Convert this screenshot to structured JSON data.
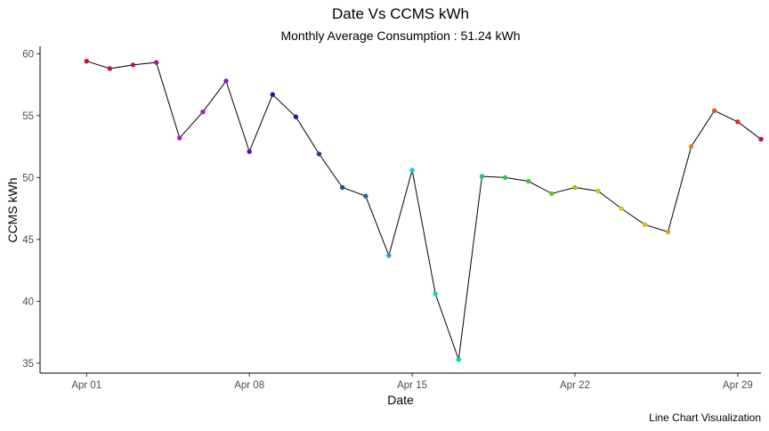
{
  "chart_data": {
    "type": "line",
    "title": "Date Vs CCMS kWh",
    "subtitle": "Monthly Average Consumption : 51.24 kWh",
    "xlabel": "Date",
    "ylabel": "CCMS kWh",
    "caption": "Line Chart Visualization",
    "xlim": [
      "2023-03-30",
      "2023-04-30"
    ],
    "ylim": [
      34.2,
      60.6
    ],
    "x_ticks": [
      "2023-04-01",
      "2023-04-08",
      "2023-04-15",
      "2023-04-22",
      "2023-04-29"
    ],
    "x_tick_labels": [
      "Apr 01",
      "Apr 08",
      "Apr 15",
      "Apr 22",
      "Apr 29"
    ],
    "y_ticks": [
      35,
      40,
      45,
      50,
      55,
      60
    ],
    "y_tick_labels": [
      "35",
      "40",
      "45",
      "50",
      "55",
      "60"
    ],
    "grid": false,
    "legend": "none",
    "line_color": "#000000",
    "x": [
      "2023-04-01",
      "2023-04-02",
      "2023-04-03",
      "2023-04-04",
      "2023-04-05",
      "2023-04-06",
      "2023-04-07",
      "2023-04-08",
      "2023-04-09",
      "2023-04-10",
      "2023-04-11",
      "2023-04-12",
      "2023-04-13",
      "2023-04-14",
      "2023-04-15",
      "2023-04-16",
      "2023-04-17",
      "2023-04-18",
      "2023-04-19",
      "2023-04-20",
      "2023-04-21",
      "2023-04-22",
      "2023-04-23",
      "2023-04-24",
      "2023-04-25",
      "2023-04-26",
      "2023-04-27",
      "2023-04-28",
      "2023-04-29",
      "2023-04-30"
    ],
    "y": [
      59.4,
      58.8,
      59.1,
      59.3,
      53.2,
      55.3,
      57.8,
      52.1,
      56.7,
      54.9,
      51.9,
      49.2,
      48.5,
      43.7,
      50.6,
      40.6,
      35.3,
      50.1,
      50.0,
      49.7,
      48.7,
      49.2,
      48.9,
      47.5,
      46.2,
      45.6,
      52.5,
      55.4,
      54.5,
      53.1
    ],
    "point_colors": [
      "#C8102E",
      "#C01050",
      "#B81070",
      "#B0108E",
      "#A818B8",
      "#A020C0",
      "#8A18C0",
      "#5A10B0",
      "#2A10A8",
      "#1A20A0",
      "#1A3A98",
      "#1A5098",
      "#1A68A8",
      "#1AA0D0",
      "#18C8D8",
      "#18D0C0",
      "#18C8A8",
      "#18C870",
      "#30C840",
      "#40C830",
      "#60C820",
      "#90C818",
      "#B8C818",
      "#D8C818",
      "#E0B818",
      "#E0A018",
      "#D88818",
      "#D06018",
      "#CC3018",
      "#CC1030"
    ]
  }
}
